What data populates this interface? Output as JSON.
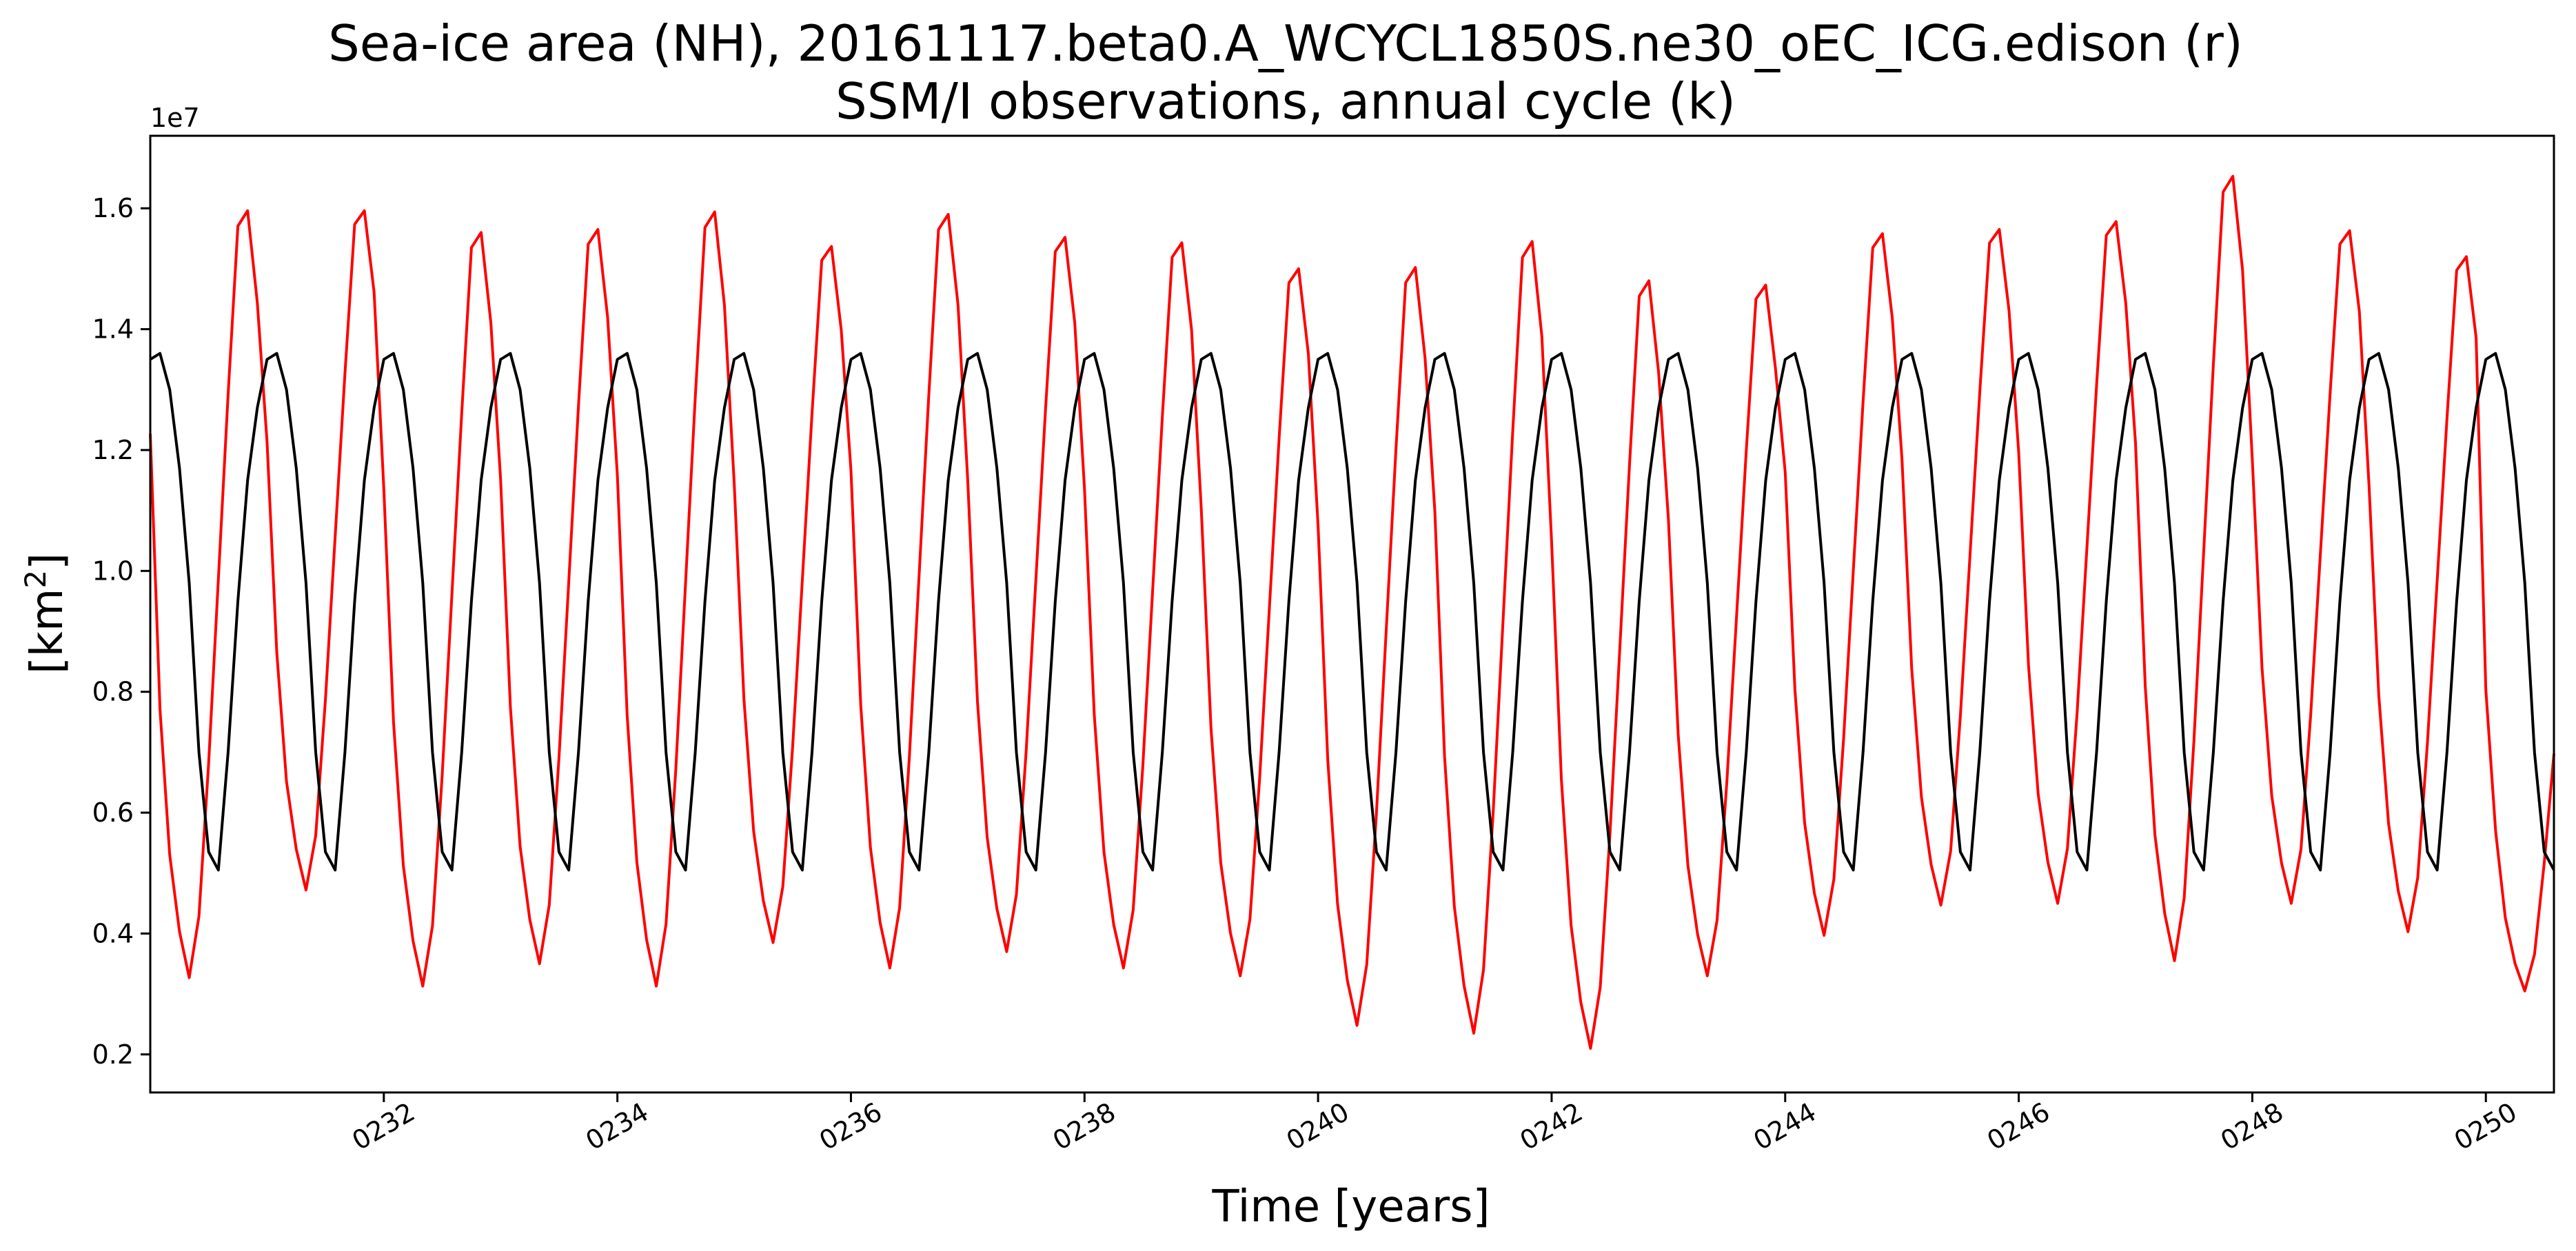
{
  "chart_data": {
    "type": "line",
    "title": "Sea-ice area (NH), 20161117.beta0.A_WCYCL1850S.ne30_oEC_ICG.edison (r)",
    "subtitle": "SSM/I observations, annual cycle (k)",
    "xlabel": "Time [years]",
    "ylabel_base": "[km",
    "ylabel_sup": "2",
    "ylabel_end": "]",
    "y_offset_label": "1e7",
    "xlim": [
      230.0,
      250.583
    ],
    "ylim": [
      0.137,
      1.72
    ],
    "x_ticks": [
      232,
      234,
      236,
      238,
      240,
      242,
      244,
      246,
      248,
      250
    ],
    "x_tick_labels": [
      "0232",
      "0234",
      "0236",
      "0238",
      "0240",
      "0242",
      "0244",
      "0246",
      "0248",
      "0250"
    ],
    "y_ticks": [
      0.2,
      0.4,
      0.6,
      0.8,
      1.0,
      1.2,
      1.4,
      1.6
    ],
    "y_tick_labels": [
      "0.2",
      "0.4",
      "0.6",
      "0.8",
      "1.0",
      "1.2",
      "1.4",
      "1.6"
    ],
    "series": [
      {
        "color": "#ff0000",
        "start_year": 230.0,
        "step": 0.0833333,
        "annual_max": [
          1.596,
          1.596,
          1.56,
          1.565,
          1.594,
          1.537,
          1.59,
          1.552,
          1.543,
          1.5,
          1.502,
          1.545,
          1.48,
          1.473,
          1.558,
          1.565,
          1.578,
          1.653,
          1.563,
          1.52,
          1.06
        ],
        "annual_min": [
          0.327,
          0.472,
          0.313,
          0.35,
          0.313,
          0.385,
          0.343,
          0.37,
          0.343,
          0.33,
          0.248,
          0.235,
          0.21,
          0.33,
          0.397,
          0.447,
          0.45,
          0.355,
          0.45,
          0.403,
          0.305
        ],
        "first_value": 1.227
      },
      {
        "color": "#000000",
        "start_year": 230.0,
        "step": 0.0833333,
        "annual_cycle": [
          1.35,
          1.36,
          1.3,
          1.17,
          0.98,
          0.7,
          0.535,
          0.505,
          0.7,
          0.95,
          1.15,
          1.27
        ]
      }
    ]
  }
}
